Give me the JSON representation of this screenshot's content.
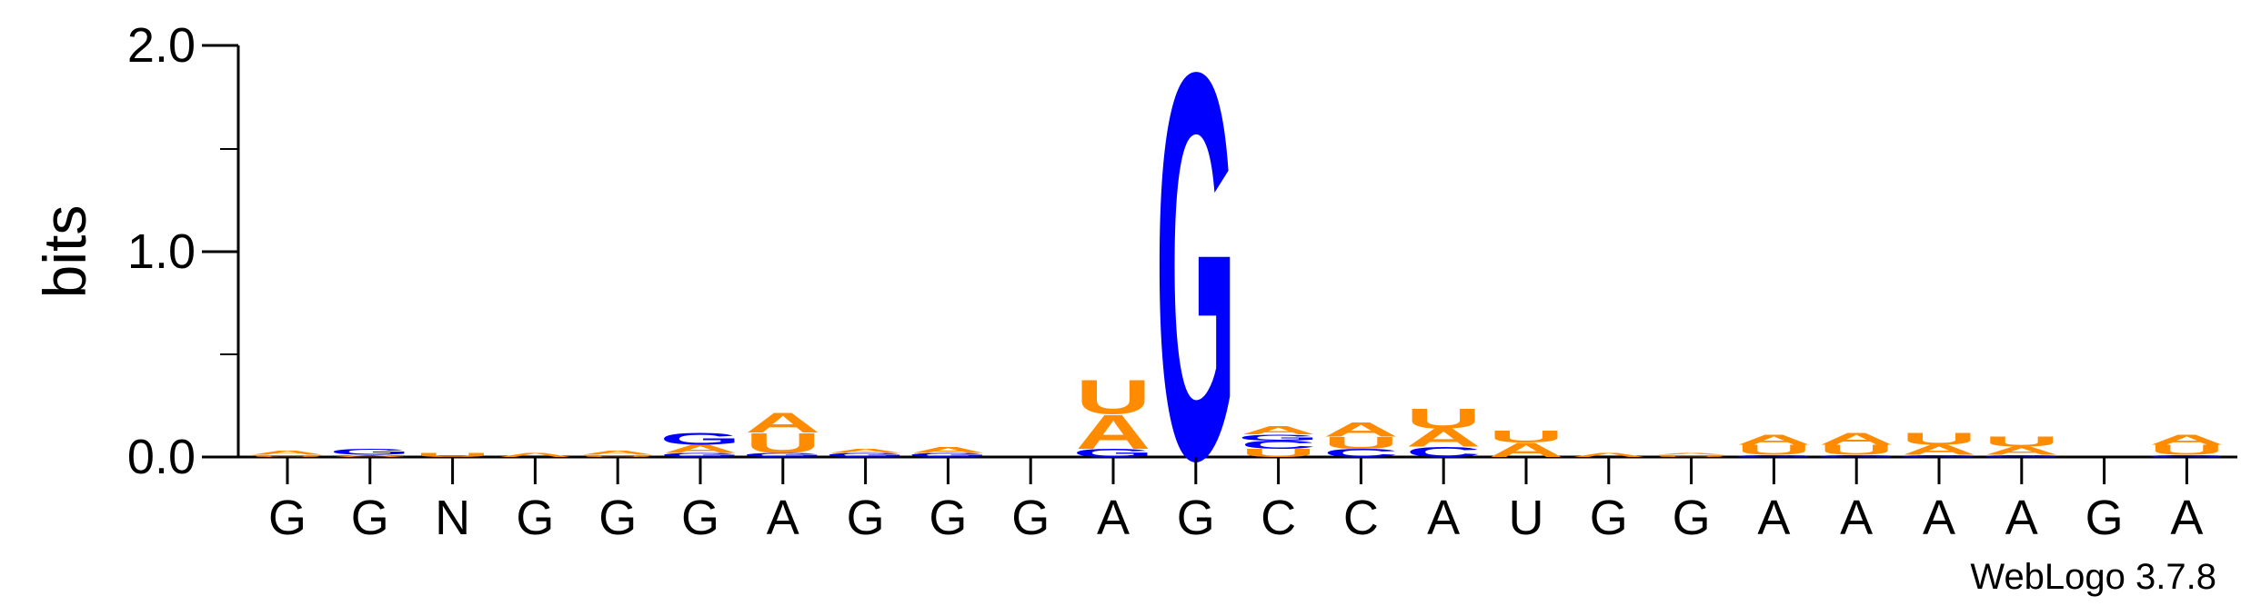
{
  "colors": {
    "A": "#ff8c00",
    "U": "#ff8c00",
    "G": "#0000ff",
    "C": "#0000ff"
  },
  "chart_data": {
    "type": "sequence-logo",
    "ylabel": "bits",
    "ylim": [
      0,
      2.0
    ],
    "yticks": [
      "0.0",
      "1.0",
      "2.0"
    ],
    "x_tick_labels": [
      "G",
      "G",
      "N",
      "G",
      "G",
      "G",
      "A",
      "G",
      "G",
      "G",
      "A",
      "G",
      "C",
      "C",
      "A",
      "U",
      "G",
      "G",
      "A",
      "A",
      "A",
      "A",
      "G",
      "A"
    ],
    "credit": "WebLogo 3.7.8",
    "positions": [
      {
        "stack": [
          {
            "letter": "U",
            "bits": 0.01
          },
          {
            "letter": "A",
            "bits": 0.02
          }
        ]
      },
      {
        "stack": [
          {
            "letter": "A",
            "bits": 0.01
          },
          {
            "letter": "G",
            "bits": 0.03
          }
        ]
      },
      {
        "stack": [
          {
            "letter": "U",
            "bits": 0.02
          }
        ]
      },
      {
        "stack": [
          {
            "letter": "A",
            "bits": 0.02
          }
        ]
      },
      {
        "stack": [
          {
            "letter": "U",
            "bits": 0.01
          },
          {
            "letter": "A",
            "bits": 0.02
          }
        ]
      },
      {
        "stack": [
          {
            "letter": "G",
            "bits": 0.02
          },
          {
            "letter": "A",
            "bits": 0.04
          },
          {
            "letter": "G",
            "bits": 0.06
          }
        ]
      },
      {
        "stack": [
          {
            "letter": "G",
            "bits": 0.02
          },
          {
            "letter": "U",
            "bits": 0.1
          },
          {
            "letter": "A",
            "bits": 0.1
          }
        ]
      },
      {
        "stack": [
          {
            "letter": "G",
            "bits": 0.02
          },
          {
            "letter": "A",
            "bits": 0.02
          }
        ]
      },
      {
        "stack": [
          {
            "letter": "G",
            "bits": 0.02
          },
          {
            "letter": "A",
            "bits": 0.03
          }
        ]
      },
      {
        "stack": []
      },
      {
        "stack": [
          {
            "letter": "G",
            "bits": 0.04
          },
          {
            "letter": "A",
            "bits": 0.17
          },
          {
            "letter": "U",
            "bits": 0.17
          }
        ]
      },
      {
        "stack": [
          {
            "letter": "G",
            "bits": 1.93
          }
        ]
      },
      {
        "stack": [
          {
            "letter": "U",
            "bits": 0.04
          },
          {
            "letter": "C",
            "bits": 0.04
          },
          {
            "letter": "G",
            "bits": 0.03
          },
          {
            "letter": "A",
            "bits": 0.04
          }
        ]
      },
      {
        "stack": [
          {
            "letter": "C",
            "bits": 0.04
          },
          {
            "letter": "U",
            "bits": 0.06
          },
          {
            "letter": "A",
            "bits": 0.07
          }
        ]
      },
      {
        "stack": [
          {
            "letter": "C",
            "bits": 0.05
          },
          {
            "letter": "A",
            "bits": 0.09
          },
          {
            "letter": "U",
            "bits": 0.1
          }
        ]
      },
      {
        "stack": [
          {
            "letter": "A",
            "bits": 0.07
          },
          {
            "letter": "U",
            "bits": 0.06
          }
        ]
      },
      {
        "stack": [
          {
            "letter": "A",
            "bits": 0.02
          }
        ]
      },
      {
        "stack": [
          {
            "letter": "U",
            "bits": 0.01
          },
          {
            "letter": "A",
            "bits": 0.01
          }
        ]
      },
      {
        "stack": [
          {
            "letter": "G",
            "bits": 0.01
          },
          {
            "letter": "U",
            "bits": 0.05
          },
          {
            "letter": "A",
            "bits": 0.05
          }
        ]
      },
      {
        "stack": [
          {
            "letter": "G",
            "bits": 0.01
          },
          {
            "letter": "U",
            "bits": 0.05
          },
          {
            "letter": "A",
            "bits": 0.06
          }
        ]
      },
      {
        "stack": [
          {
            "letter": "G",
            "bits": 0.01
          },
          {
            "letter": "A",
            "bits": 0.05
          },
          {
            "letter": "U",
            "bits": 0.06
          }
        ]
      },
      {
        "stack": [
          {
            "letter": "G",
            "bits": 0.01
          },
          {
            "letter": "A",
            "bits": 0.04
          },
          {
            "letter": "U",
            "bits": 0.05
          }
        ]
      },
      {
        "stack": []
      },
      {
        "stack": [
          {
            "letter": "G",
            "bits": 0.01
          },
          {
            "letter": "U",
            "bits": 0.05
          },
          {
            "letter": "A",
            "bits": 0.05
          }
        ]
      }
    ]
  }
}
